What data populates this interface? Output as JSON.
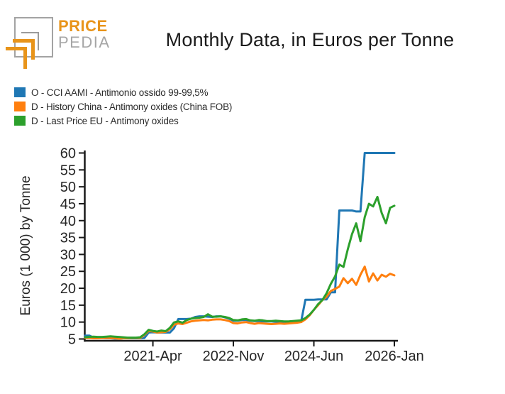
{
  "header": {
    "logo_price": "PRICE",
    "logo_pedia": "PEDIA",
    "title": "Monthly Data, in Euros per Tonne"
  },
  "legend": {
    "items": [
      {
        "label": "O - CCI AAMI - Antimonio ossido 99-99,5%",
        "color": "#1f77b4"
      },
      {
        "label": "D - History China - Antimony oxides (China FOB)",
        "color": "#ff7f0e"
      },
      {
        "label": "D - Last Price EU - Antimony oxides",
        "color": "#2ca02c"
      }
    ]
  },
  "chart_data": {
    "type": "line",
    "title": "Monthly Data, in Euros per Tonne",
    "xlabel": "",
    "ylabel": "Euros (1 000) by Tonne",
    "ylim": [
      5,
      60
    ],
    "yticks": [
      5,
      10,
      15,
      20,
      25,
      30,
      35,
      40,
      45,
      50,
      55,
      60
    ],
    "x_frequency": "monthly",
    "x_month_count": 74,
    "xticks": [
      {
        "label": "2021-Apr",
        "month_index": 16
      },
      {
        "label": "2022-Nov",
        "month_index": 35
      },
      {
        "label": "2024-Jun",
        "month_index": 54
      },
      {
        "label": "2026-Jan",
        "month_index": 73
      }
    ],
    "grid": false,
    "legend_position": "top-left",
    "series": [
      {
        "name": "O - CCI AAMI - Antimonio ossido 99-99,5%",
        "color": "#1f77b4",
        "points": [
          6,
          6,
          5.4,
          5.3,
          5.3,
          5.2,
          5.2,
          5.1,
          5.1,
          5.2,
          5.2,
          5.2,
          5.2,
          5.2,
          5.3,
          6.9,
          7,
          6.9,
          6.9,
          6.9,
          6.9,
          8.2,
          10.9,
          10.9,
          10.9,
          11,
          11.5,
          11.7,
          11.7,
          11.6,
          11.5,
          11.7,
          11.7,
          11.4,
          11,
          10.4,
          10.4,
          10.6,
          10.6,
          10.4,
          10.3,
          10.3,
          10.2,
          10.2,
          10.2,
          10.1,
          10.1,
          10.1,
          10.1,
          10.1,
          10.2,
          10.2,
          16.6,
          16.6,
          16.6,
          16.7,
          16.7,
          16.7,
          18.8,
          18.8,
          43,
          43,
          43,
          43,
          42.7,
          42.7,
          60,
          60,
          60,
          60,
          60,
          60,
          60,
          60
        ]
      },
      {
        "name": "D - History China - Antimony oxides (China FOB)",
        "color": "#ff7f0e",
        "points": [
          5.3,
          5.3,
          5.2,
          5.2,
          5.3,
          5.3,
          5.3,
          5.2,
          5.1,
          5.2,
          5.2,
          5.3,
          5.3,
          5.3,
          6.2,
          7.4,
          7.2,
          6.9,
          7,
          7.1,
          7.9,
          9.2,
          9.6,
          9.4,
          9.8,
          10.2,
          10.4,
          10.5,
          10.6,
          10.5,
          10.7,
          10.8,
          10.8,
          10.6,
          10.3,
          9.7,
          9.6,
          9.9,
          10,
          9.7,
          9.5,
          9.7,
          9.6,
          9.5,
          9.4,
          9.5,
          9.6,
          9.5,
          9.6,
          9.7,
          9.8,
          10,
          10.8,
          12,
          13.6,
          15,
          16.5,
          17.5,
          19.2,
          19.8,
          20.5,
          23,
          21.5,
          22.8,
          21,
          24,
          26.4,
          22,
          24.4,
          22.3,
          24,
          23.4,
          24.3,
          23.8
        ]
      },
      {
        "name": "D - Last Price EU - Antimony oxides",
        "color": "#2ca02c",
        "points": [
          5.5,
          5.6,
          5.7,
          5.6,
          5.6,
          5.7,
          5.8,
          5.7,
          5.6,
          5.5,
          5.4,
          5.4,
          5.4,
          5.5,
          6.4,
          7.7,
          7.4,
          7.2,
          7.5,
          7.3,
          8.3,
          9.9,
          10.2,
          9.8,
          10.6,
          11,
          11.2,
          11.3,
          11.5,
          12.3,
          11.6,
          11.6,
          11.7,
          11.5,
          11.2,
          10.6,
          10.5,
          10.8,
          10.9,
          10.5,
          10.4,
          10.6,
          10.5,
          10.3,
          10.3,
          10.4,
          10.3,
          10.2,
          10.2,
          10.3,
          10.4,
          10.5,
          11.2,
          12.2,
          13.6,
          15.3,
          16.5,
          18.5,
          21.3,
          23.5,
          27,
          26.3,
          31.5,
          36,
          39.2,
          33.9,
          41,
          45,
          44.2,
          47,
          42.3,
          39.2,
          43.8,
          44.4
        ]
      }
    ]
  }
}
